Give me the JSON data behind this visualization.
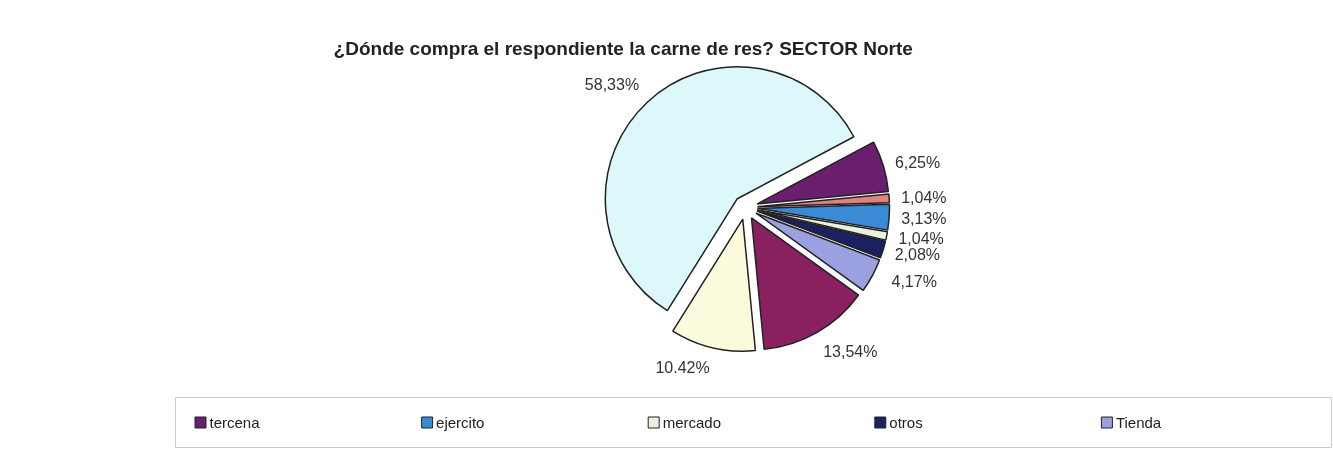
{
  "chart_data": {
    "type": "pie",
    "title": "¿Dónde compra el respondiente la carne de res?          SECTOR Norte",
    "categories": [
      "tercena",
      null,
      "ejercito",
      "mercado",
      "otros",
      "Tienda",
      null,
      null,
      null
    ],
    "values": [
      6.25,
      1.04,
      3.13,
      1.04,
      2.08,
      4.17,
      13.54,
      10.42,
      58.33
    ],
    "value_labels": [
      "6,25%",
      "1,04%",
      "3,13%",
      "1,04%",
      "2,08%",
      "4,17%",
      "13,54%",
      "10.42%",
      "58,33%"
    ],
    "colors": [
      "#6a1f6e",
      "#e08080",
      "#3a8ad6",
      "#e8f0e0",
      "#1a2060",
      "#9aa0e0",
      "#8a2060",
      "#fcfadc",
      "#dcf8fa"
    ],
    "legend": "bottom"
  }
}
